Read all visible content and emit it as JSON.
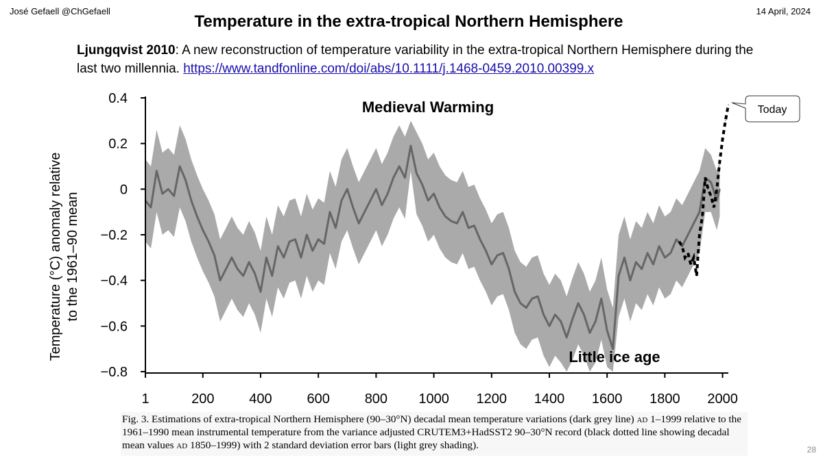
{
  "header": {
    "author": "José Gefaell @ChGefaell",
    "date": "14 April, 2024",
    "title": "Temperature in the extra-tropical Northern Hemisphere"
  },
  "citation": {
    "name": "Ljungqvist 2010",
    "text": ": A new reconstruction of temperature variability in the extra-tropical Northern Hemisphere during the last two millennia. ",
    "url": "https://www.tandfonline.com/doi/abs/10.1111/j.1468-0459.2010.00399.x"
  },
  "caption": {
    "part1": "Fig. 3. Estimations of extra-tropical Northern Hemisphere (90–30°N) decadal mean temperature variations (dark grey line) ",
    "ad1": "ad",
    "part2": " 1–1999 relative to the 1961–1990 mean instrumental temperature from the variance adjusted CRUTEM3+HadSST2 90–30°N record (black dotted line showing decadal mean values ",
    "ad2": "ad",
    "part3": " 1850–1999) with 2 standard deviation error bars (light grey shading)."
  },
  "page_number": "28",
  "chart_data": {
    "type": "line",
    "ylabel": "Temperature (°C) anomaly relative to the 1961–90 mean",
    "ylabel_lines": [
      "Temperature (°C) anomaly relative",
      "to the 1961–90 mean"
    ],
    "xlim": [
      1,
      2020
    ],
    "ylim": [
      -0.8,
      0.4
    ],
    "x_ticks": [
      "1",
      "200",
      "400",
      "600",
      "800",
      "1000",
      "1200",
      "1400",
      "1600",
      "1800",
      "2000"
    ],
    "x_tick_values": [
      1,
      200,
      400,
      600,
      800,
      1000,
      1200,
      1400,
      1600,
      1800,
      2000
    ],
    "y_ticks": [
      "0.4",
      "0.2",
      "0",
      "−0.2",
      "−0.4",
      "−0.6",
      "−0.8"
    ],
    "y_tick_values": [
      0.4,
      0.2,
      0,
      -0.2,
      -0.4,
      -0.6,
      -0.8
    ],
    "grid": false,
    "colors": {
      "line": "#666666",
      "band": "#aaaaaa",
      "instrumental": "#000000",
      "medieval": "#e0302a",
      "little_ice_age": "#4aa3df"
    },
    "series": [
      {
        "style": "dark grey line",
        "x": [
          1,
          20,
          40,
          60,
          80,
          100,
          120,
          140,
          160,
          180,
          200,
          220,
          240,
          260,
          280,
          300,
          320,
          340,
          360,
          380,
          400,
          420,
          440,
          460,
          480,
          500,
          520,
          540,
          560,
          580,
          600,
          620,
          640,
          660,
          680,
          700,
          720,
          740,
          760,
          780,
          800,
          820,
          840,
          860,
          880,
          900,
          920,
          940,
          960,
          980,
          1000,
          1020,
          1040,
          1060,
          1080,
          1100,
          1120,
          1140,
          1160,
          1180,
          1200,
          1220,
          1240,
          1260,
          1280,
          1300,
          1320,
          1340,
          1360,
          1380,
          1400,
          1420,
          1440,
          1460,
          1480,
          1500,
          1520,
          1540,
          1560,
          1580,
          1600,
          1620,
          1640,
          1660,
          1680,
          1700,
          1720,
          1740,
          1760,
          1780,
          1800,
          1820,
          1840,
          1860,
          1880,
          1900,
          1920,
          1940,
          1960,
          1980,
          1990
        ],
        "y": [
          -0.05,
          -0.08,
          0.08,
          -0.02,
          0.0,
          -0.03,
          0.1,
          0.04,
          -0.05,
          -0.12,
          -0.18,
          -0.23,
          -0.29,
          -0.4,
          -0.35,
          -0.3,
          -0.35,
          -0.38,
          -0.32,
          -0.37,
          -0.45,
          -0.3,
          -0.38,
          -0.25,
          -0.3,
          -0.23,
          -0.22,
          -0.3,
          -0.2,
          -0.27,
          -0.22,
          -0.24,
          -0.1,
          -0.17,
          -0.05,
          0.0,
          -0.08,
          -0.15,
          -0.1,
          -0.05,
          0.0,
          -0.07,
          -0.02,
          0.05,
          0.1,
          0.05,
          0.19,
          0.07,
          0.02,
          -0.05,
          -0.02,
          -0.08,
          -0.12,
          -0.14,
          -0.15,
          -0.1,
          -0.17,
          -0.16,
          -0.22,
          -0.27,
          -0.33,
          -0.29,
          -0.28,
          -0.35,
          -0.45,
          -0.5,
          -0.52,
          -0.48,
          -0.47,
          -0.55,
          -0.6,
          -0.55,
          -0.58,
          -0.65,
          -0.57,
          -0.5,
          -0.55,
          -0.63,
          -0.58,
          -0.48,
          -0.62,
          -0.7,
          -0.38,
          -0.3,
          -0.4,
          -0.32,
          -0.35,
          -0.28,
          -0.33,
          -0.25,
          -0.3,
          -0.28,
          -0.22,
          -0.25,
          -0.2,
          -0.15,
          -0.1,
          0.05,
          0.03,
          -0.05,
          0.0
        ]
      },
      {
        "style": "light grey shading (2 standard deviation error bars)",
        "x": [
          1,
          20,
          40,
          60,
          80,
          100,
          120,
          140,
          160,
          180,
          200,
          220,
          240,
          260,
          280,
          300,
          320,
          340,
          360,
          380,
          400,
          420,
          440,
          460,
          480,
          500,
          520,
          540,
          560,
          580,
          600,
          620,
          640,
          660,
          680,
          700,
          720,
          740,
          760,
          780,
          800,
          820,
          840,
          860,
          880,
          900,
          920,
          940,
          960,
          980,
          1000,
          1020,
          1040,
          1060,
          1080,
          1100,
          1120,
          1140,
          1160,
          1180,
          1200,
          1220,
          1240,
          1260,
          1280,
          1300,
          1320,
          1340,
          1360,
          1380,
          1400,
          1420,
          1440,
          1460,
          1480,
          1500,
          1520,
          1540,
          1560,
          1580,
          1600,
          1620,
          1640,
          1660,
          1680,
          1700,
          1720,
          1740,
          1760,
          1780,
          1800,
          1820,
          1840,
          1860,
          1880,
          1900,
          1920,
          1940,
          1960,
          1980,
          1990
        ],
        "y_upper": [
          0.13,
          0.1,
          0.26,
          0.16,
          0.18,
          0.15,
          0.28,
          0.22,
          0.13,
          0.06,
          0.0,
          -0.05,
          -0.11,
          -0.22,
          -0.17,
          -0.12,
          -0.17,
          -0.2,
          -0.14,
          -0.19,
          -0.27,
          -0.12,
          -0.2,
          -0.07,
          -0.12,
          -0.05,
          -0.04,
          -0.12,
          -0.02,
          -0.09,
          -0.04,
          -0.06,
          0.08,
          0.01,
          0.13,
          0.18,
          0.1,
          0.03,
          0.08,
          0.13,
          0.18,
          0.11,
          0.16,
          0.23,
          0.28,
          0.23,
          0.3,
          0.25,
          0.2,
          0.13,
          0.16,
          0.1,
          0.06,
          0.04,
          0.03,
          0.08,
          0.01,
          0.02,
          -0.04,
          -0.09,
          -0.15,
          -0.11,
          -0.1,
          -0.17,
          -0.27,
          -0.32,
          -0.34,
          -0.3,
          -0.29,
          -0.37,
          -0.42,
          -0.37,
          -0.4,
          -0.47,
          -0.39,
          -0.32,
          -0.37,
          -0.45,
          -0.4,
          -0.3,
          -0.44,
          -0.52,
          -0.2,
          -0.12,
          -0.22,
          -0.14,
          -0.17,
          -0.1,
          -0.15,
          -0.07,
          -0.12,
          -0.1,
          -0.04,
          -0.07,
          -0.02,
          0.03,
          0.08,
          0.18,
          0.15,
          0.08,
          0.12
        ],
        "y_lower": [
          -0.23,
          -0.26,
          -0.1,
          -0.2,
          -0.18,
          -0.21,
          -0.08,
          -0.14,
          -0.23,
          -0.3,
          -0.36,
          -0.41,
          -0.47,
          -0.58,
          -0.53,
          -0.48,
          -0.53,
          -0.56,
          -0.5,
          -0.55,
          -0.63,
          -0.48,
          -0.56,
          -0.43,
          -0.48,
          -0.41,
          -0.4,
          -0.48,
          -0.38,
          -0.45,
          -0.4,
          -0.42,
          -0.28,
          -0.35,
          -0.23,
          -0.18,
          -0.26,
          -0.33,
          -0.28,
          -0.23,
          -0.18,
          -0.25,
          -0.2,
          -0.13,
          -0.08,
          -0.13,
          0.08,
          -0.11,
          -0.16,
          -0.23,
          -0.2,
          -0.26,
          -0.3,
          -0.32,
          -0.33,
          -0.28,
          -0.35,
          -0.34,
          -0.4,
          -0.45,
          -0.51,
          -0.47,
          -0.46,
          -0.53,
          -0.63,
          -0.68,
          -0.7,
          -0.66,
          -0.65,
          -0.73,
          -0.78,
          -0.73,
          -0.76,
          -0.8,
          -0.75,
          -0.68,
          -0.73,
          -0.8,
          -0.76,
          -0.66,
          -0.78,
          -0.8,
          -0.56,
          -0.48,
          -0.58,
          -0.5,
          -0.53,
          -0.46,
          -0.51,
          -0.43,
          -0.48,
          -0.46,
          -0.4,
          -0.43,
          -0.38,
          -0.33,
          -0.28,
          -0.1,
          -0.1,
          -0.18,
          -0.12
        ]
      },
      {
        "style": "black dotted line",
        "x": [
          1850,
          1860,
          1870,
          1880,
          1890,
          1900,
          1910,
          1920,
          1930,
          1940,
          1950,
          1960,
          1970,
          1980,
          1990,
          2000,
          2010,
          2020
        ],
        "y": [
          -0.23,
          -0.25,
          -0.3,
          -0.28,
          -0.33,
          -0.3,
          -0.38,
          -0.2,
          -0.12,
          0.05,
          0.0,
          -0.03,
          -0.08,
          0.0,
          0.12,
          0.22,
          0.3,
          0.37
        ]
      }
    ],
    "annotations": {
      "medieval": "Medieval Warming",
      "little_ice_age": "Little ice age",
      "today": "Today"
    }
  }
}
